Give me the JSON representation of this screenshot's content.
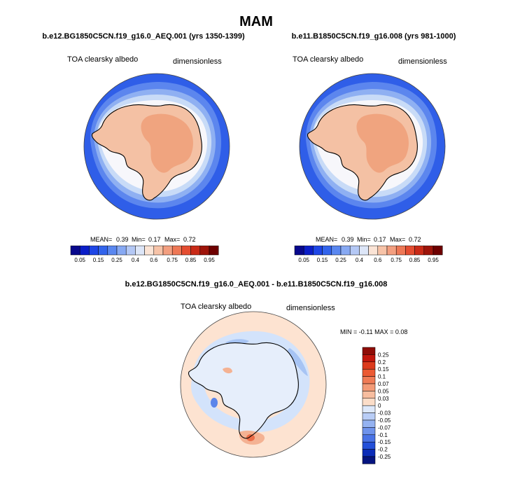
{
  "figure": {
    "title": "MAM",
    "diff_title": "b.e12.BG1850C5CN.f19_g16.0_AEQ.001 - b.e11.B1850C5CN.f19_g16.008"
  },
  "colors": {
    "ocean_low": "#2f5ee8",
    "ocean_mid": "#5c86ee",
    "ocean_band": "#8fb0f2",
    "ice_edge": "#c8dbf7",
    "neutral": "#f7f7fb",
    "land_light": "#f8ddcb",
    "land": "#f4c1a4",
    "land_high": "#f0a47f",
    "coast": "#000000",
    "diff_bg": "#fde3d1",
    "diff_neg": "#d3e3fb",
    "diff_neg2": "#a7c4f4",
    "diff_neg3": "#5b85ea",
    "diff_pos": "#f4b293",
    "diff_pos2": "#eb6c47"
  },
  "chart_data": [
    {
      "type": "heatmap",
      "title": "b.e12.BG1850C5CN.f19_g16.0_AEQ.001 (yrs 1350-1399)",
      "variable": "TOA clearsky albedo",
      "units": "dimensionless",
      "stats": {
        "mean": "0.39",
        "min": "0.17",
        "max": "0.72"
      },
      "stats_labels": {
        "mean": "MEAN=",
        "min": "Min=",
        "max": "Max="
      },
      "colorbar": {
        "ticks": [
          "0.05",
          "0.15",
          "0.25",
          "0.4",
          "0.6",
          "0.75",
          "0.85",
          "0.95"
        ],
        "colors": [
          "#08088c",
          "#0b1ec8",
          "#1e46e6",
          "#3264ec",
          "#5a87f0",
          "#87a9f3",
          "#b4c8f5",
          "#dde6f8",
          "#fbe4d6",
          "#f7c3a8",
          "#f39f80",
          "#ee7856",
          "#e44d31",
          "#c92a17",
          "#9e140a",
          "#6e0000"
        ]
      }
    },
    {
      "type": "heatmap",
      "title": "b.e11.B1850C5CN.f19_g16.008 (yrs 981-1000)",
      "variable": "TOA clearsky albedo",
      "units": "dimensionless",
      "stats": {
        "mean": "0.39",
        "min": "0.17",
        "max": "0.72"
      },
      "stats_labels": {
        "mean": "MEAN=",
        "min": "Min=",
        "max": "Max="
      },
      "colorbar": {
        "ticks": [
          "0.05",
          "0.15",
          "0.25",
          "0.4",
          "0.6",
          "0.75",
          "0.85",
          "0.95"
        ],
        "colors": [
          "#08088c",
          "#0b1ec8",
          "#1e46e6",
          "#3264ec",
          "#5a87f0",
          "#87a9f3",
          "#b4c8f5",
          "#dde6f8",
          "#fbe4d6",
          "#f7c3a8",
          "#f39f80",
          "#ee7856",
          "#e44d31",
          "#c92a17",
          "#9e140a",
          "#6e0000"
        ]
      }
    },
    {
      "type": "heatmap",
      "title": "b.e12.BG1850C5CN.f19_g16.0_AEQ.001 - b.e11.B1850C5CN.f19_g16.008",
      "variable": "TOA clearsky albedo",
      "units": "dimensionless",
      "minmax_text": "MIN = -0.11 MAX = 0.08",
      "colorbar": {
        "ticks": [
          "0.25",
          "0.2",
          "0.15",
          "0.1",
          "0.07",
          "0.05",
          "0.03",
          "0",
          "-0.03",
          "-0.05",
          "-0.07",
          "-0.1",
          "-0.15",
          "-0.2",
          "-0.25"
        ],
        "colors": [
          "#8f0c07",
          "#c2160c",
          "#dc3a1c",
          "#ec5a33",
          "#f07b55",
          "#f39a76",
          "#f7bd9f",
          "#fbddc8",
          "#dde8fa",
          "#b9cdf6",
          "#94b2f1",
          "#6f93ec",
          "#4a73e6",
          "#2450d9",
          "#0b2cb8",
          "#05147f"
        ]
      }
    }
  ]
}
